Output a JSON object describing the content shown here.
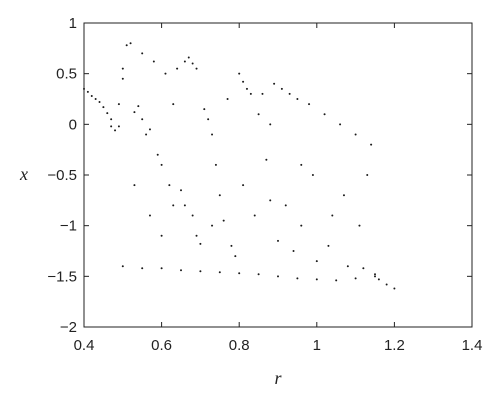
{
  "chart_data": {
    "type": "scatter",
    "title": "",
    "xlabel": "r",
    "ylabel": "x",
    "xlim": [
      0.4,
      1.4
    ],
    "ylim": [
      -2,
      1
    ],
    "xticks": [
      0.4,
      0.6,
      0.8,
      1.0,
      1.2,
      1.4
    ],
    "xtick_labels": [
      "0.4",
      "0.6",
      "0.8",
      "1",
      "1.2",
      "1.4"
    ],
    "yticks": [
      1,
      0.5,
      0,
      -0.5,
      -1,
      -1.5,
      -2
    ],
    "ytick_labels": [
      "1",
      "0.5",
      "0",
      "−0.5",
      "−1",
      "−1.5",
      "−2"
    ],
    "grid": false,
    "legend": "none",
    "point_color": "#1a1a1a",
    "series": [
      {
        "points": [
          [
            0.4,
            0.35
          ],
          [
            0.41,
            0.32
          ],
          [
            0.42,
            0.28
          ],
          [
            0.43,
            0.25
          ],
          [
            0.44,
            0.22
          ],
          [
            0.45,
            0.17
          ],
          [
            0.46,
            0.11
          ],
          [
            0.47,
            0.05
          ],
          [
            0.47,
            -0.02
          ],
          [
            0.48,
            -0.06
          ],
          [
            0.49,
            -0.02
          ],
          [
            0.49,
            0.2
          ],
          [
            0.5,
            0.45
          ],
          [
            0.5,
            0.55
          ],
          [
            0.51,
            0.78
          ],
          [
            0.52,
            0.8
          ],
          [
            0.53,
            0.12
          ],
          [
            0.54,
            0.18
          ],
          [
            0.55,
            0.05
          ],
          [
            0.55,
            0.7
          ],
          [
            0.56,
            -0.1
          ],
          [
            0.57,
            -0.05
          ],
          [
            0.58,
            0.62
          ],
          [
            0.59,
            -0.3
          ],
          [
            0.6,
            -0.4
          ],
          [
            0.61,
            0.5
          ],
          [
            0.62,
            -0.6
          ],
          [
            0.63,
            -0.8
          ],
          [
            0.64,
            0.55
          ],
          [
            0.65,
            -0.65
          ],
          [
            0.66,
            -0.8
          ],
          [
            0.66,
            0.62
          ],
          [
            0.67,
            0.66
          ],
          [
            0.68,
            0.6
          ],
          [
            0.68,
            -0.9
          ],
          [
            0.69,
            -1.1
          ],
          [
            0.7,
            -1.18
          ],
          [
            0.71,
            0.15
          ],
          [
            0.72,
            0.05
          ],
          [
            0.73,
            -0.1
          ],
          [
            0.74,
            -0.4
          ],
          [
            0.75,
            -0.7
          ],
          [
            0.76,
            -0.95
          ],
          [
            0.78,
            -1.2
          ],
          [
            0.79,
            -1.3
          ],
          [
            0.8,
            0.5
          ],
          [
            0.81,
            0.42
          ],
          [
            0.82,
            0.35
          ],
          [
            0.83,
            0.3
          ],
          [
            0.84,
            -0.9
          ],
          [
            0.86,
            0.3
          ],
          [
            0.87,
            -0.35
          ],
          [
            0.88,
            -0.75
          ],
          [
            0.89,
            0.4
          ],
          [
            0.9,
            -1.15
          ],
          [
            0.91,
            0.35
          ],
          [
            0.93,
            0.3
          ],
          [
            0.94,
            -1.25
          ],
          [
            0.95,
            0.25
          ],
          [
            0.96,
            -0.4
          ],
          [
            0.98,
            0.2
          ],
          [
            1.0,
            -1.35
          ],
          [
            1.02,
            0.1
          ],
          [
            1.04,
            -0.9
          ],
          [
            1.06,
            0.0
          ],
          [
            1.08,
            -1.4
          ],
          [
            1.1,
            -0.1
          ],
          [
            1.12,
            -1.42
          ],
          [
            1.14,
            -0.2
          ],
          [
            1.15,
            -1.5
          ],
          [
            1.16,
            -1.53
          ],
          [
            1.18,
            -1.58
          ],
          [
            1.2,
            -1.62
          ],
          [
            0.5,
            -1.4
          ],
          [
            0.55,
            -1.42
          ],
          [
            0.6,
            -1.42
          ],
          [
            0.65,
            -1.44
          ],
          [
            0.7,
            -1.45
          ],
          [
            0.75,
            -1.46
          ],
          [
            0.8,
            -1.47
          ],
          [
            0.85,
            -1.48
          ],
          [
            0.9,
            -1.5
          ],
          [
            0.95,
            -1.52
          ],
          [
            1.0,
            -1.53
          ],
          [
            1.05,
            -1.54
          ],
          [
            1.1,
            -1.52
          ],
          [
            1.15,
            -1.48
          ],
          [
            0.53,
            -0.6
          ],
          [
            0.57,
            -0.9
          ],
          [
            0.6,
            -1.1
          ],
          [
            0.63,
            0.2
          ],
          [
            0.69,
            0.55
          ],
          [
            0.73,
            -1.0
          ],
          [
            0.77,
            0.25
          ],
          [
            0.81,
            -0.6
          ],
          [
            0.85,
            0.1
          ],
          [
            0.88,
            0.0
          ],
          [
            0.92,
            -0.8
          ],
          [
            0.96,
            -1.0
          ],
          [
            0.99,
            -0.5
          ],
          [
            1.03,
            -1.2
          ],
          [
            1.07,
            -0.7
          ],
          [
            1.11,
            -1.0
          ],
          [
            1.13,
            -0.5
          ]
        ]
      }
    ]
  }
}
